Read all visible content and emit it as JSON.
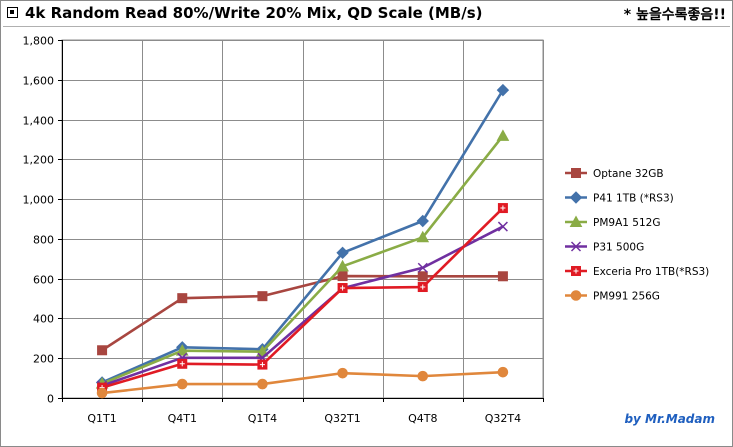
{
  "header": {
    "title": "4k Random Read 80%/Write 20% Mix, QD Scale (MB/s)",
    "note": "* 높을수록좋음!!"
  },
  "credit": "by Mr.Madam",
  "colors": {
    "grid": "#8c8c8c",
    "background": "#ffffff"
  },
  "chart_data": {
    "type": "line",
    "title": "4k Random Read 80%/Write 20% Mix, QD Scale (MB/s)",
    "categories": [
      "Q1T1",
      "Q4T1",
      "Q1T4",
      "Q32T1",
      "Q4T8",
      "Q32T4"
    ],
    "ylim": [
      0,
      1800
    ],
    "yticks": [
      0,
      200,
      400,
      600,
      800,
      1000,
      1200,
      1400,
      1600,
      1800
    ],
    "ytick_labels": [
      "0",
      "200",
      "400",
      "600",
      "800",
      "1,000",
      "1,200",
      "1,400",
      "1,600",
      "1,800"
    ],
    "grid": true,
    "legend_position": "right",
    "series": [
      {
        "name": "Optane 32GB",
        "color": "#a84640",
        "marker": "square",
        "values": [
          240,
          502,
          512,
          613,
          612,
          612
        ]
      },
      {
        "name": "P41 1TB (*RS3)",
        "color": "#4372aa",
        "marker": "diamond",
        "values": [
          78,
          255,
          245,
          730,
          890,
          1548
        ]
      },
      {
        "name": "PM9A1 512G",
        "color": "#8aac46",
        "marker": "triangle",
        "values": [
          72,
          238,
          233,
          662,
          808,
          1318
        ]
      },
      {
        "name": "P31 500G",
        "color": "#7030a0",
        "marker": "x",
        "values": [
          62,
          202,
          202,
          552,
          655,
          862
        ]
      },
      {
        "name": "Exceria Pro 1TB(*RS3)",
        "color": "#e01b24",
        "marker": "square-cross",
        "values": [
          52,
          172,
          168,
          553,
          558,
          955
        ]
      },
      {
        "name": "PM991 256G",
        "color": "#e0873c",
        "marker": "circle",
        "values": [
          25,
          70,
          70,
          125,
          110,
          130
        ]
      }
    ]
  }
}
